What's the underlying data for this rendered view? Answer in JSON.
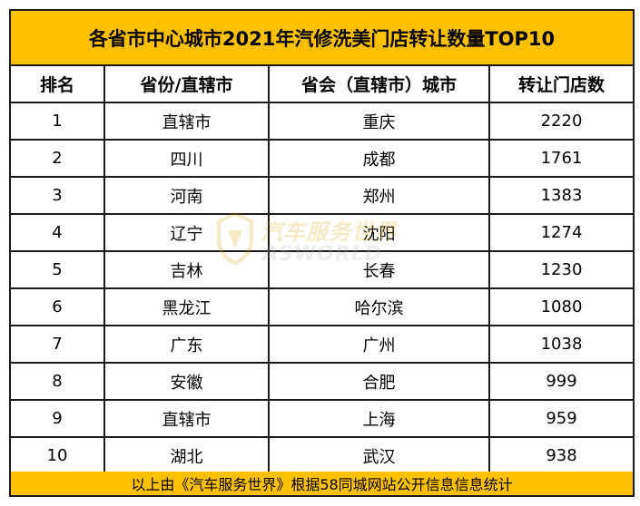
{
  "title": "各省市中心城市2021年汽修洗美门店转让数量TOP10",
  "columns": [
    "排名",
    "省份/直辖市",
    "省会（直辖市）城市",
    "转让门店数"
  ],
  "rows": [
    [
      "1",
      "直辖市",
      "重庆",
      "2220"
    ],
    [
      "2",
      "四川",
      "成都",
      "1761"
    ],
    [
      "3",
      "河南",
      "郑州",
      "1383"
    ],
    [
      "4",
      "辽宁",
      "沈阳",
      "1274"
    ],
    [
      "5",
      "吉林",
      "长春",
      "1230"
    ],
    [
      "6",
      "黑龙江",
      "哈尔滨",
      "1080"
    ],
    [
      "7",
      "广东",
      "广州",
      "1038"
    ],
    [
      "8",
      "安徽",
      "合肥",
      "999"
    ],
    [
      "9",
      "直辖市",
      "上海",
      "959"
    ],
    [
      "10",
      "湖北",
      "武汉",
      "938"
    ]
  ],
  "footer": "以上由《汽车服务世界》根据58同城网站公开信息信息统计",
  "watermark": {
    "cn": "汽车服务世界",
    "en": "ASWORLD"
  },
  "colors": {
    "header_fill": "#ffc000",
    "border": "#1a1a1a",
    "watermark": "#d9a400"
  }
}
